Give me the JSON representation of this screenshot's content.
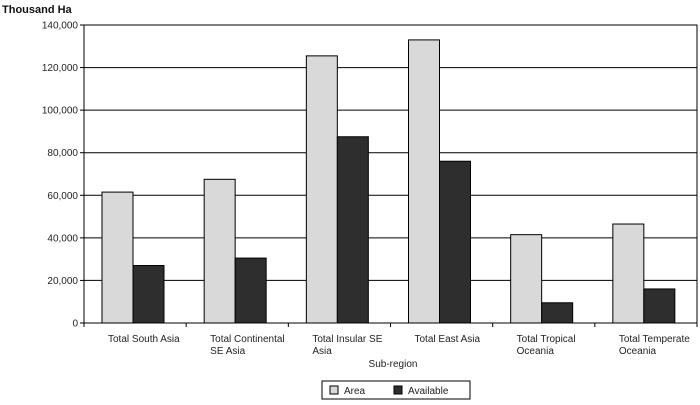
{
  "chart_data": {
    "type": "bar",
    "ylabel": "Thousand Ha",
    "xlabel": "Sub-region",
    "categories": [
      [
        "Total South Asia"
      ],
      [
        "Total Continental",
        "SE Asia"
      ],
      [
        "Total Insular SE",
        "Asia"
      ],
      [
        "Total East Asia"
      ],
      [
        "Total Tropical",
        "Oceania"
      ],
      [
        "Total Temperate",
        "Oceania"
      ]
    ],
    "series": [
      {
        "name": "Area",
        "color": "#d9d9d9",
        "values": [
          61500,
          67500,
          125500,
          133000,
          41500,
          46500
        ]
      },
      {
        "name": "Available",
        "color": "#2e2e2e",
        "values": [
          27000,
          30500,
          87500,
          76000,
          9500,
          16000
        ]
      }
    ],
    "ylim": [
      0,
      140000
    ],
    "yticks": [
      "0",
      "20,000",
      "40,000",
      "60,000",
      "80,000",
      "100,000",
      "120,000",
      "140,000"
    ],
    "grid": true,
    "legend_position": "bottom-center"
  }
}
